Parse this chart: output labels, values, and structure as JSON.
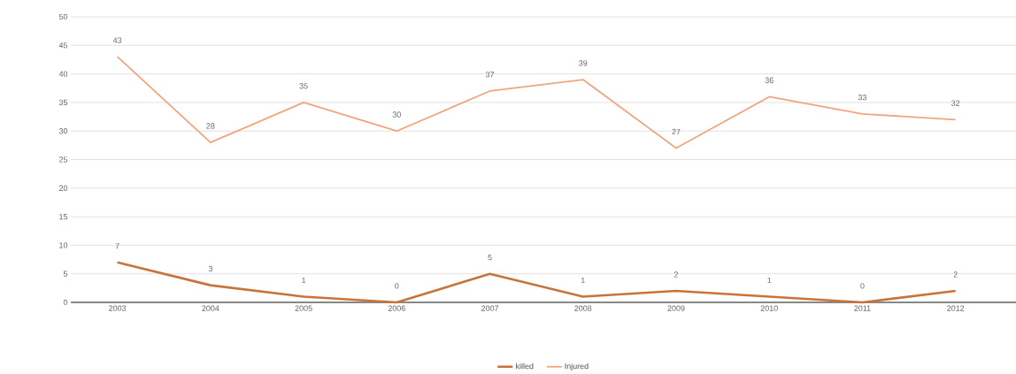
{
  "chart_data": {
    "type": "line",
    "categories": [
      "2003",
      "2004",
      "2005",
      "2006",
      "2007",
      "2008",
      "2009",
      "2010",
      "2011",
      "2012"
    ],
    "series": [
      {
        "name": "killed",
        "color": "#c8733a",
        "values": [
          7,
          3,
          1,
          0,
          5,
          1,
          2,
          1,
          0,
          2
        ]
      },
      {
        "name": "Injured",
        "color": "#f0a57c",
        "values": [
          43,
          28,
          35,
          30,
          37,
          39,
          27,
          36,
          33,
          32
        ]
      }
    ],
    "ylim": [
      0,
      50
    ],
    "yticks": [
      0,
      5,
      10,
      15,
      20,
      25,
      30,
      35,
      40,
      45,
      50
    ],
    "grid": "y",
    "legend": "bottom",
    "data_labels": true,
    "marker": "none",
    "line_style": "solid"
  }
}
